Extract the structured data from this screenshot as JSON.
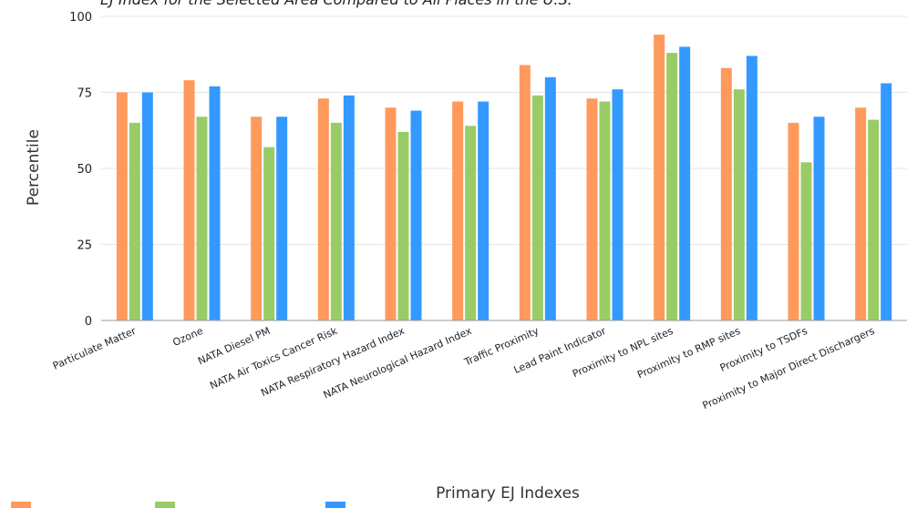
{
  "chart_data": {
    "type": "bar",
    "title": "EJ Index for the Selected Area Compared to All Places in the U.S.",
    "xlabel": "Primary EJ Indexes",
    "ylabel": "Percentile",
    "ylim": [
      0,
      100
    ],
    "yticks": [
      0,
      25,
      50,
      75,
      100
    ],
    "grid": true,
    "legend": "bottom",
    "categories": [
      "Particulate Matter",
      "Ozone",
      "NATA Diesel PM",
      "NATA Air Toxics Cancer Risk",
      "NATA Respiratory Hazard Index",
      "NATA Neurological Hazard Index",
      "Traffic Proximity",
      "Lead Paint Indicator",
      "Proximity to NPL sites",
      "Proximity to RMP sites",
      "Proximity to TSDFs",
      "Proximity to Major Direct Dischargers"
    ],
    "series": [
      {
        "color": "#ff9a5c",
        "values": [
          75,
          79,
          67,
          73,
          70,
          72,
          84,
          73,
          94,
          83,
          65,
          70
        ]
      },
      {
        "color": "#99cc66",
        "values": [
          65,
          67,
          57,
          65,
          62,
          64,
          74,
          72,
          88,
          76,
          52,
          66
        ]
      },
      {
        "color": "#3399ff",
        "values": [
          75,
          77,
          67,
          74,
          69,
          72,
          80,
          76,
          90,
          87,
          67,
          78
        ]
      }
    ]
  }
}
